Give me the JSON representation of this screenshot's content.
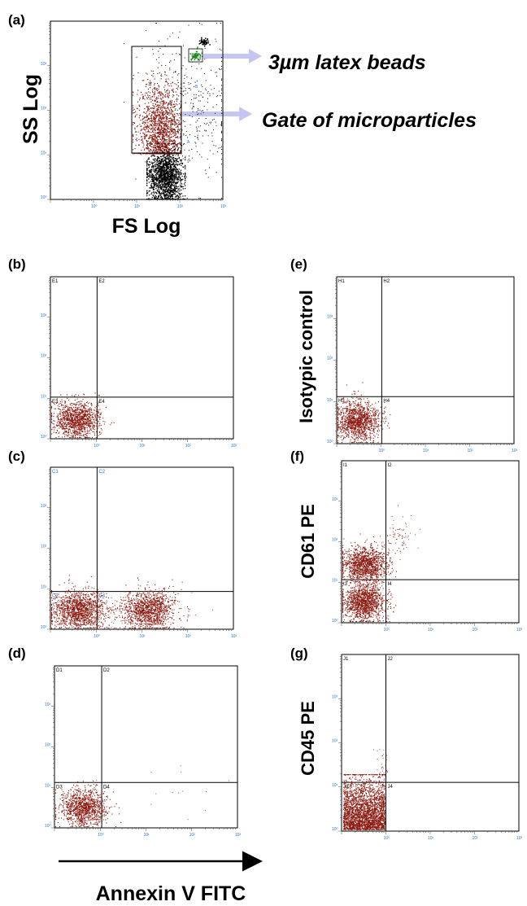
{
  "colors": {
    "events": "#8b1a10",
    "debris": "#000000",
    "beads": "#1f8a1f",
    "arrow": "#c6c6f2",
    "tick_label": "#2b6fd6"
  },
  "panel_labels": [
    "(a)",
    "(b)",
    "(c)",
    "(d)",
    "(e)",
    "(f)",
    "(g)"
  ],
  "text": {
    "ss_log": "SS Log",
    "fs_log": "FS Log",
    "beads": "3µm latex beads",
    "gate": "Gate of microparticles",
    "isotypic": "Isotypic control",
    "cd61": "CD61  PE",
    "cd45": "CD45  PE",
    "annexin": "Annexin V FITC"
  },
  "chart_data": [
    {
      "id": "a",
      "type": "scatter",
      "scale": "log",
      "xlabel": "FS Log",
      "ylabel": "SS Log",
      "x_ticks": [
        "10⁰",
        "10¹",
        "10²",
        "10³"
      ],
      "y_ticks": [
        "10³",
        "10²",
        "10¹",
        "10⁰"
      ],
      "gates": [
        "A",
        "B"
      ],
      "annotations": [
        "3µm latex beads",
        "Gate of microparticles"
      ]
    },
    {
      "id": "b",
      "type": "scatter",
      "scale": "log",
      "quadrant_labels": [
        "E1",
        "E2",
        "E3",
        "E4"
      ],
      "x_ticks": [
        "10⁰",
        "10¹",
        "10²",
        "10³"
      ],
      "y_ticks": [
        "10³",
        "10²",
        "10¹",
        "10⁰"
      ]
    },
    {
      "id": "c",
      "type": "scatter",
      "scale": "log",
      "quadrant_labels": [
        "C1",
        "C2",
        "C3",
        "C4"
      ],
      "x_ticks": [
        "10⁰",
        "10¹",
        "10²",
        "10³"
      ],
      "y_ticks": [
        "10³",
        "10²",
        "10¹",
        "10⁰"
      ]
    },
    {
      "id": "d",
      "type": "scatter",
      "scale": "log",
      "quadrant_labels": [
        "D1",
        "D2",
        "D3",
        "D4"
      ],
      "x_ticks": [
        "10⁰",
        "10¹",
        "10²",
        "10³"
      ],
      "y_ticks": [
        "10³",
        "10²",
        "10¹",
        "10⁰"
      ],
      "xlabel": "Annexin V FITC"
    },
    {
      "id": "e",
      "type": "scatter",
      "scale": "log",
      "quadrant_labels": [
        "H1",
        "H2",
        "H3",
        "H4"
      ],
      "ylabel": "Isotypic control",
      "x_ticks": [
        "10⁰",
        "10¹",
        "10²",
        "10³"
      ],
      "y_ticks": [
        "10³",
        "10²",
        "10¹",
        "10⁰"
      ]
    },
    {
      "id": "f",
      "type": "scatter",
      "scale": "log",
      "quadrant_labels": [
        "I1",
        "I2",
        "I3",
        "I4"
      ],
      "ylabel": "CD61  PE",
      "x_ticks": [
        "10⁰",
        "10¹",
        "10²",
        "10³"
      ],
      "y_ticks": [
        "10³",
        "10²",
        "10¹",
        "10⁰"
      ]
    },
    {
      "id": "g",
      "type": "scatter",
      "scale": "log",
      "quadrant_labels": [
        "J1",
        "J2",
        "J3",
        "J4"
      ],
      "ylabel": "CD45  PE",
      "x_ticks": [
        "10⁰",
        "10¹",
        "10²",
        "10³"
      ],
      "y_ticks": [
        "10³",
        "10²",
        "10¹",
        "10⁰"
      ]
    }
  ]
}
